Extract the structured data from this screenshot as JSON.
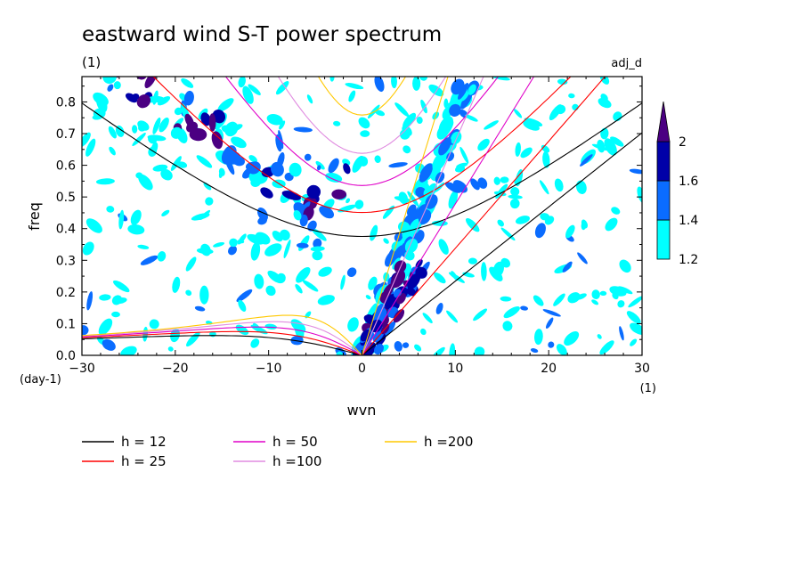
{
  "chart_data": {
    "type": "heatmap",
    "title": "eastward wind S-T power spectrum",
    "title_unit": "(1)",
    "tag": "adj_d",
    "xlabel": "wvn",
    "x_unit": "(1)",
    "ylabel": "freq",
    "y_unit": "(day-1)",
    "xlim": [
      -30,
      30
    ],
    "ylim": [
      0,
      0.88
    ],
    "x_ticks": [
      "-30",
      "-20",
      "-10",
      "0",
      "10",
      "20",
      "30"
    ],
    "y_ticks": [
      "0.0",
      "0.1",
      "0.2",
      "0.3",
      "0.4",
      "0.5",
      "0.6",
      "0.7",
      "0.8"
    ],
    "grid": false,
    "colorbar": {
      "labels": [
        "1.2",
        "1.4",
        "1.6",
        "2"
      ],
      "levels": [
        {
          "from": 1.2,
          "to": 1.4,
          "color": "#00ffff"
        },
        {
          "from": 1.4,
          "to": 1.6,
          "color": "#0a6cff"
        },
        {
          "from": 1.6,
          "to": 2.0,
          "color": "#0000a8"
        },
        {
          "from": 2.0,
          "to": null,
          "color": "#4b0082"
        }
      ]
    },
    "series": [
      {
        "name": "h = 12",
        "h": 12,
        "color": "#000000"
      },
      {
        "name": "h = 25",
        "h": 25,
        "color": "#ff0000"
      },
      {
        "name": "h = 50",
        "h": 50,
        "color": "#e000c8"
      },
      {
        "name": "h =100",
        "h": 100,
        "color": "#e08ce0"
      },
      {
        "name": "h =200",
        "h": 200,
        "color": "#ffc800"
      }
    ],
    "legend_position": "bottom"
  }
}
